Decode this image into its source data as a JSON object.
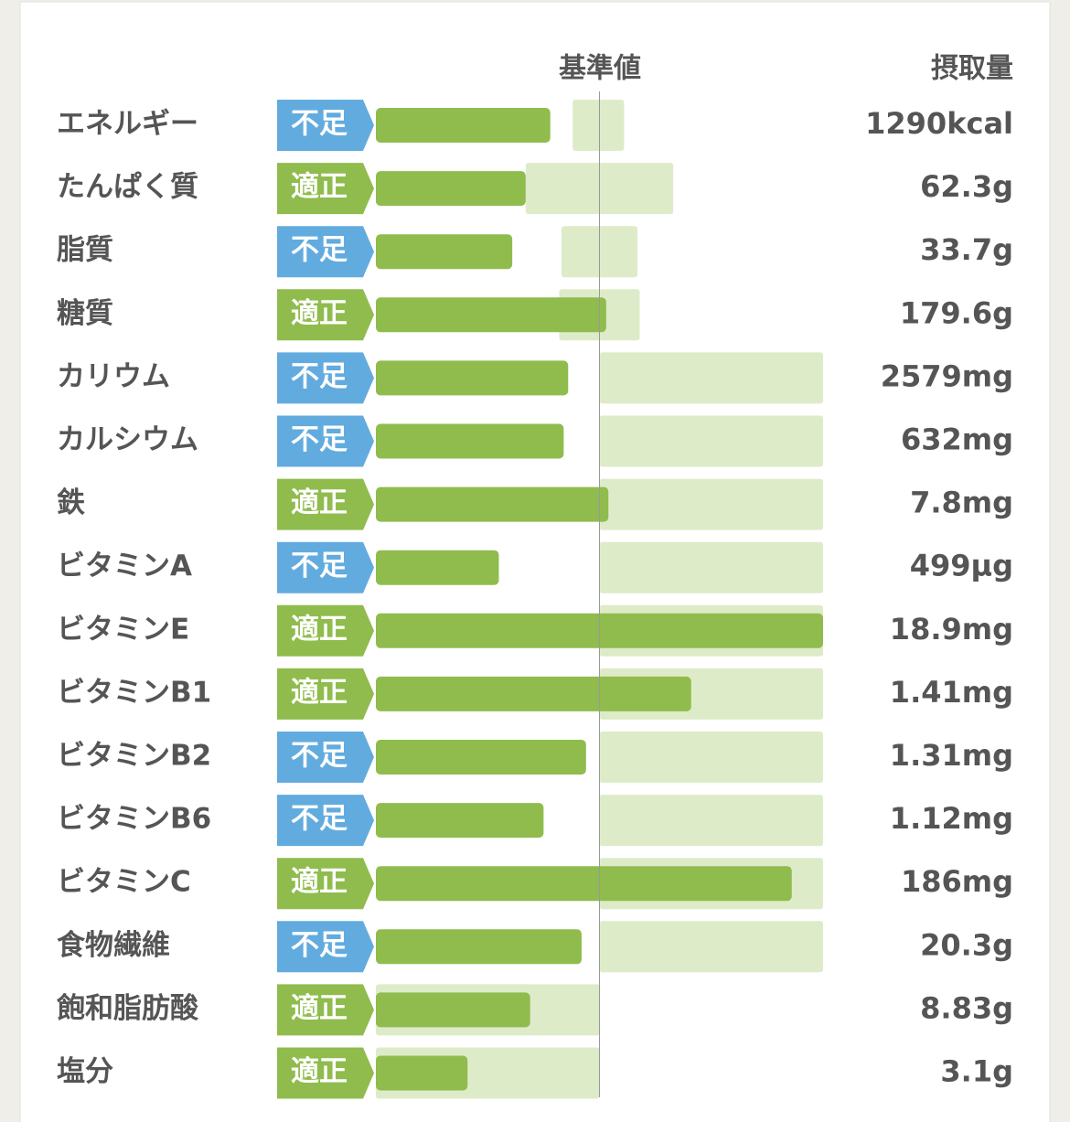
{
  "chart_data": {
    "type": "bar",
    "columns": {
      "reference": "基準値",
      "intake": "摂取量"
    },
    "xlim": [
      0,
      200
    ],
    "reference": 100,
    "rows": [
      {
        "name": "エネルギー",
        "status": "不足",
        "status_color": "#62abdf",
        "amount": "1290kcal",
        "value": 78,
        "range": [
          88,
          111
        ]
      },
      {
        "name": "たんぱく質",
        "status": "適正",
        "status_color": "#8fbc4d",
        "amount": "62.3g",
        "value": 67,
        "range": [
          67,
          133
        ]
      },
      {
        "name": "脂質",
        "status": "不足",
        "status_color": "#62abdf",
        "amount": "33.7g",
        "value": 61,
        "range": [
          83,
          117
        ]
      },
      {
        "name": "糖質",
        "status": "適正",
        "status_color": "#8fbc4d",
        "amount": "179.6g",
        "value": 103,
        "range": [
          82,
          118
        ]
      },
      {
        "name": "カリウム",
        "status": "不足",
        "status_color": "#62abdf",
        "amount": "2579mg",
        "value": 86,
        "range": [
          100,
          200
        ]
      },
      {
        "name": "カルシウム",
        "status": "不足",
        "status_color": "#62abdf",
        "amount": "632mg",
        "value": 84,
        "range": [
          100,
          200
        ]
      },
      {
        "name": "鉄",
        "status": "適正",
        "status_color": "#8fbc4d",
        "amount": "7.8mg",
        "value": 104,
        "range": [
          100,
          200
        ]
      },
      {
        "name": "ビタミンA",
        "status": "不足",
        "status_color": "#62abdf",
        "amount": "499μg",
        "value": 55,
        "range": [
          100,
          200
        ]
      },
      {
        "name": "ビタミンE",
        "status": "適正",
        "status_color": "#8fbc4d",
        "amount": "18.9mg",
        "value": 200,
        "range": [
          100,
          200
        ]
      },
      {
        "name": "ビタミンB1",
        "status": "適正",
        "status_color": "#8fbc4d",
        "amount": "1.41mg",
        "value": 141,
        "range": [
          100,
          200
        ]
      },
      {
        "name": "ビタミンB2",
        "status": "不足",
        "status_color": "#62abdf",
        "amount": "1.31mg",
        "value": 94,
        "range": [
          100,
          200
        ]
      },
      {
        "name": "ビタミンB6",
        "status": "不足",
        "status_color": "#62abdf",
        "amount": "1.12mg",
        "value": 75,
        "range": [
          100,
          200
        ]
      },
      {
        "name": "ビタミンC",
        "status": "適正",
        "status_color": "#8fbc4d",
        "amount": "186mg",
        "value": 186,
        "range": [
          100,
          200
        ]
      },
      {
        "name": "食物繊維",
        "status": "不足",
        "status_color": "#62abdf",
        "amount": "20.3g",
        "value": 92,
        "range": [
          100,
          200
        ]
      },
      {
        "name": "飽和脂肪酸",
        "status": "適正",
        "status_color": "#8fbc4d",
        "amount": "8.83g",
        "value": 69,
        "range": [
          0,
          100
        ]
      },
      {
        "name": "塩分",
        "status": "適正",
        "status_color": "#8fbc4d",
        "amount": "3.1g",
        "value": 41,
        "range": [
          0,
          100
        ]
      }
    ],
    "bar_color": "#8fbc4d",
    "range_color": "#deebc9"
  }
}
